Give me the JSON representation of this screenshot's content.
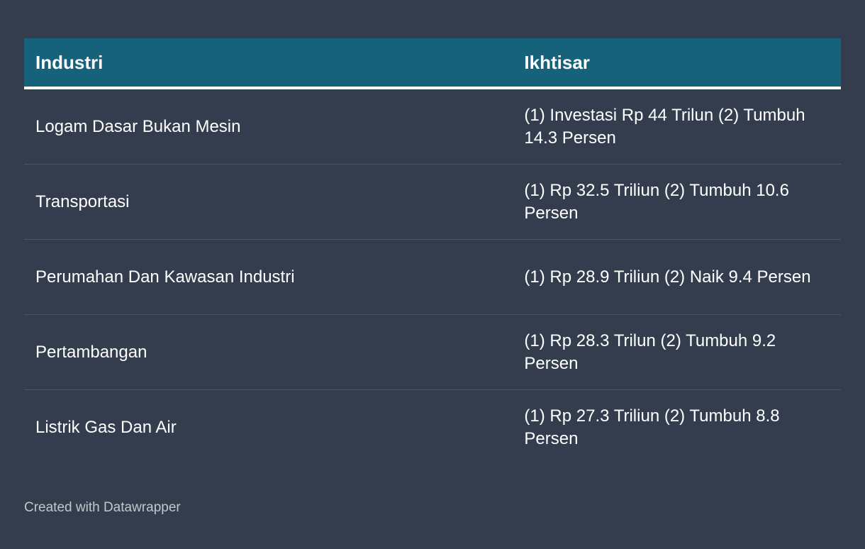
{
  "table": {
    "headers": [
      "Industri",
      "Ikhtisar"
    ],
    "rows": [
      {
        "industri": "Logam Dasar Bukan Mesin",
        "ikhtisar": "(1) Investasi Rp 44 Trilun (2) Tumbuh 14.3 Persen"
      },
      {
        "industri": "Transportasi",
        "ikhtisar": "(1) Rp 32.5 Triliun (2) Tumbuh 10.6 Persen"
      },
      {
        "industri": "Perumahan Dan Kawasan Industri",
        "ikhtisar": "(1) Rp 28.9 Triliun (2) Naik 9.4 Persen"
      },
      {
        "industri": "Pertambangan",
        "ikhtisar": "(1) Rp 28.3 Trilun (2) Tumbuh 9.2 Persen"
      },
      {
        "industri": "Listrik Gas Dan Air",
        "ikhtisar": "(1) Rp 27.3 Triliun (2) Tumbuh 8.8 Persen"
      }
    ]
  },
  "footer": {
    "credit": "Created with Datawrapper"
  },
  "colors": {
    "background": "#333d4d",
    "header": "#17627b",
    "divider": "#4b5566"
  }
}
